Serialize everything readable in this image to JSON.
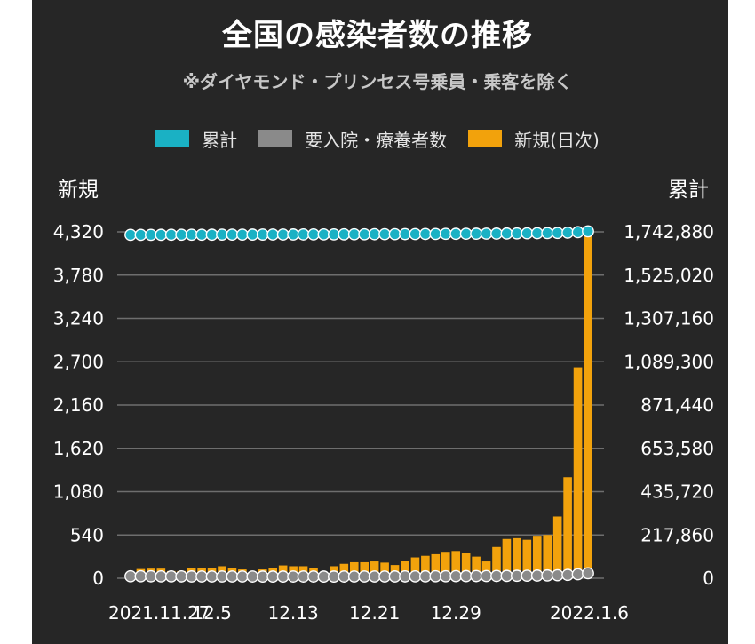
{
  "chart_data": {
    "type": "bar",
    "title": "全国の感染者数の推移",
    "subtitle": "※ダイヤモンド・プリンセス号乗員・乗客を除く",
    "left_axis_title": "新規",
    "right_axis_title": "累計",
    "legend": [
      {
        "name": "累計",
        "color": "#1ab1c4"
      },
      {
        "name": "要入院・療養者数",
        "color": "#8a8a8a"
      },
      {
        "name": "新規(日次)",
        "color": "#f2a20c"
      }
    ],
    "x_tick_labels": [
      "2021.11.27",
      "12.5",
      "12.13",
      "12.21",
      "12.29",
      "2022.1.6"
    ],
    "y_left": {
      "min": 0,
      "max": 4320,
      "ticks": [
        "0",
        "540",
        "1,080",
        "1,620",
        "2,160",
        "2,700",
        "3,240",
        "3,780",
        "4,320"
      ]
    },
    "y_right": {
      "min": 0,
      "max": 1742880,
      "ticks": [
        "0",
        "217,860",
        "435,720",
        "653,580",
        "871,440",
        "1,089,300",
        "1,307,160",
        "1,525,020",
        "1,742,880"
      ]
    },
    "grid": true,
    "legend_position": "top",
    "series": [
      {
        "name": "新規(日次)",
        "color": "#f2a20c",
        "values": [
          0,
          115,
          120,
          120,
          90,
          90,
          130,
          125,
          130,
          150,
          130,
          110,
          80,
          110,
          130,
          160,
          150,
          150,
          125,
          70,
          150,
          180,
          200,
          200,
          210,
          195,
          165,
          220,
          260,
          280,
          300,
          330,
          340,
          315,
          270,
          210,
          390,
          490,
          500,
          480,
          530,
          540,
          770,
          1260,
          2630,
          4290
        ]
      },
      {
        "name": "累計",
        "color": "#1ab1c4",
        "values": [
          1727700,
          1727820,
          1727940,
          1728060,
          1728150,
          1728240,
          1728370,
          1728495,
          1728625,
          1728775,
          1728905,
          1729015,
          1729095,
          1729205,
          1729335,
          1729495,
          1729645,
          1729795,
          1729920,
          1729990,
          1730140,
          1730320,
          1730520,
          1730720,
          1730930,
          1731125,
          1731290,
          1731510,
          1731770,
          1732050,
          1732350,
          1732680,
          1733020,
          1733335,
          1733605,
          1733815,
          1734205,
          1734695,
          1735195,
          1735675,
          1736205,
          1736745,
          1737515,
          1738775,
          1741405,
          1745695
        ]
      },
      {
        "name": "要入院・療養者数",
        "color": "#8a8a8a",
        "values": [
          10000,
          10000,
          9800,
          9600,
          9400,
          9300,
          9200,
          9100,
          9000,
          9000,
          8900,
          8800,
          8700,
          8600,
          8600,
          8600,
          8700,
          8700,
          8700,
          8600,
          8600,
          8700,
          8800,
          8900,
          9000,
          9100,
          9200,
          9300,
          9500,
          9700,
          9900,
          10200,
          10500,
          10800,
          11000,
          11200,
          11500,
          12000,
          12500,
          13000,
          13600,
          14200,
          15200,
          17000,
          20000,
          25000
        ]
      }
    ]
  }
}
